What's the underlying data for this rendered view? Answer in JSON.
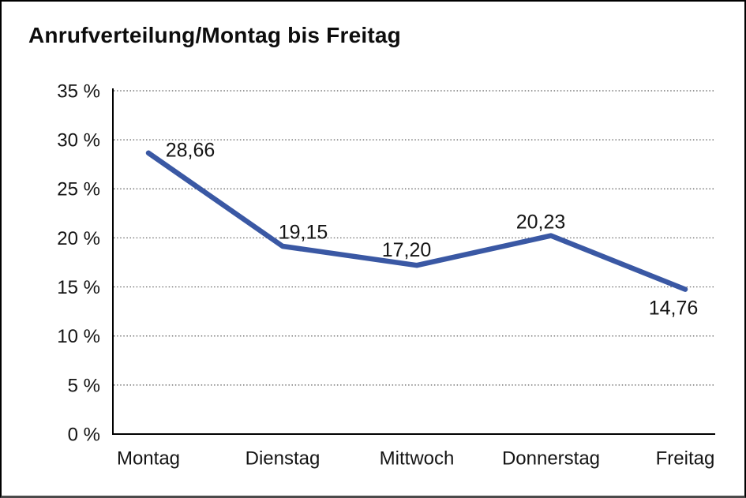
{
  "window": {
    "background": "#ffffff",
    "border_color": "#000000"
  },
  "chart_data": {
    "type": "line",
    "title": "Anrufverteilung/Montag bis Freitag",
    "categories": [
      "Montag",
      "Dienstag",
      "Mittwoch",
      "Donnerstag",
      "Freitag"
    ],
    "values": [
      28.66,
      19.15,
      17.2,
      20.23,
      14.76
    ],
    "point_labels": [
      "28,66",
      "19,15",
      "17,20",
      "20,23",
      "14,76"
    ],
    "xlabel": "",
    "ylabel": "",
    "ylim": [
      0,
      35
    ],
    "ytick_step": 5,
    "ytick_labels": [
      "0 %",
      "5 %",
      "10 %",
      "15 %",
      "20 %",
      "25 %",
      "30 %",
      "35 %"
    ],
    "grid": "horizontal-dotted",
    "legend": "none",
    "line_color": "#3A58A4",
    "axis_color": "#000000",
    "gridline_color": "#5a5a5a",
    "text_color": "#141414"
  }
}
